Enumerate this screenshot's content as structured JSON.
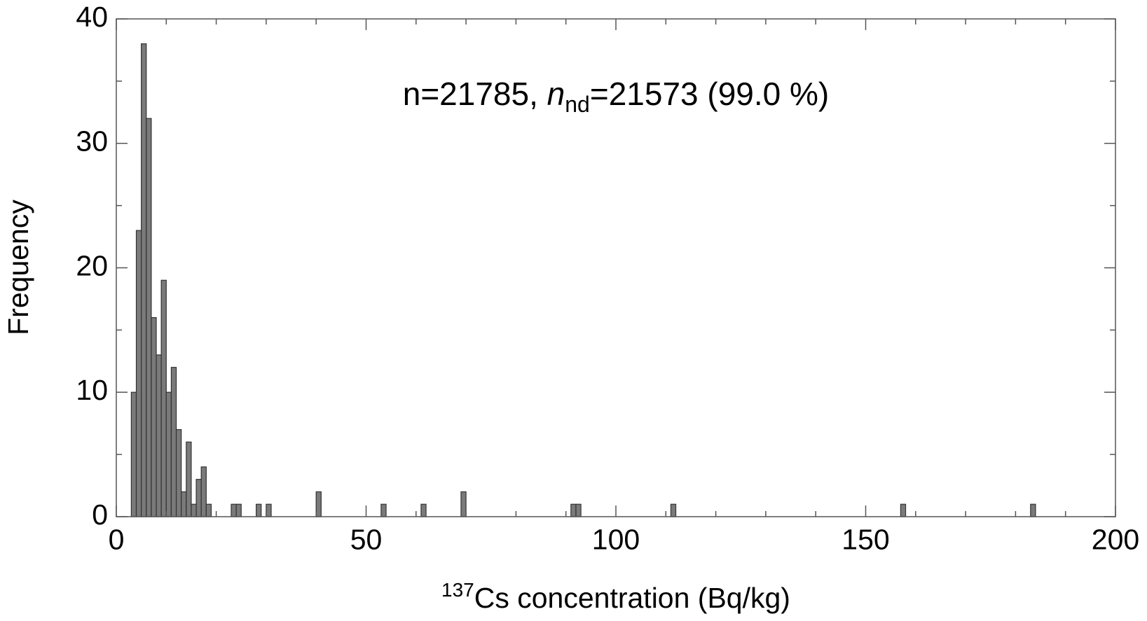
{
  "chart_data": {
    "type": "histogram",
    "annotation": {
      "parts": [
        "n=21785, ",
        "n",
        "nd",
        "=21573 (99.0 %)"
      ]
    },
    "x_label": {
      "sup": "137",
      "text": "Cs concentration (Bq/kg)"
    },
    "y_label": "Frequency",
    "bins": [
      3,
      4,
      5,
      6,
      7,
      8,
      9,
      10,
      11,
      12,
      13,
      14,
      15,
      16,
      17,
      18,
      19,
      20,
      21,
      22,
      23,
      24,
      25,
      26,
      27,
      28,
      29,
      30,
      31,
      32,
      33,
      34,
      35,
      36,
      37,
      38,
      39,
      40,
      41,
      42,
      43,
      44,
      45,
      46,
      47,
      48,
      49,
      50,
      51,
      52,
      53,
      54,
      55,
      56,
      57,
      58,
      59,
      60,
      61,
      62,
      63,
      64,
      65,
      66,
      67,
      68,
      69,
      70,
      71,
      72,
      73,
      74,
      75,
      76,
      77,
      78,
      79,
      80,
      81,
      82,
      83,
      84,
      85,
      86,
      87,
      88,
      89,
      90,
      91,
      92,
      93,
      94,
      95,
      96,
      97,
      98,
      99,
      100,
      101,
      102,
      103,
      104,
      105,
      106,
      107,
      108,
      109,
      110,
      111,
      112,
      113,
      114,
      115,
      116,
      117,
      118,
      119,
      120,
      121,
      122,
      123,
      124,
      125,
      126,
      127,
      128,
      129,
      130,
      131,
      132,
      133,
      134,
      135,
      136,
      137,
      138,
      139,
      140,
      141,
      142,
      143,
      144,
      145,
      146,
      147,
      148,
      149,
      150,
      151,
      152,
      153,
      154,
      155,
      156,
      157,
      158,
      159,
      160,
      161,
      162,
      163,
      164,
      165,
      166,
      167,
      168,
      169,
      170,
      171,
      172,
      173,
      174,
      175,
      176,
      177,
      178,
      179,
      180,
      181,
      182,
      183,
      184
    ],
    "values": [
      10,
      23,
      38,
      32,
      16,
      13,
      19,
      10,
      12,
      7,
      2,
      6,
      1,
      3,
      4,
      1,
      0,
      0,
      0,
      0,
      1,
      1,
      0,
      0,
      0,
      1,
      0,
      1,
      0,
      0,
      0,
      0,
      0,
      0,
      0,
      0,
      0,
      2,
      0,
      0,
      0,
      0,
      0,
      0,
      0,
      0,
      0,
      0,
      0,
      0,
      1,
      0,
      0,
      0,
      0,
      0,
      0,
      0,
      1,
      0,
      0,
      0,
      0,
      0,
      0,
      0,
      2,
      0,
      0,
      0,
      0,
      0,
      0,
      0,
      0,
      0,
      0,
      0,
      0,
      0,
      0,
      0,
      0,
      0,
      0,
      0,
      0,
      0,
      1,
      1,
      0,
      0,
      0,
      0,
      0,
      0,
      0,
      0,
      0,
      0,
      0,
      0,
      0,
      0,
      0,
      0,
      0,
      0,
      1,
      0,
      0,
      0,
      0,
      0,
      0,
      0,
      0,
      0,
      0,
      0,
      0,
      0,
      0,
      0,
      0,
      0,
      0,
      0,
      0,
      0,
      0,
      0,
      0,
      0,
      0,
      0,
      0,
      0,
      0,
      0,
      0,
      0,
      0,
      0,
      0,
      0,
      0,
      0,
      0,
      0,
      0,
      0,
      0,
      0,
      1,
      0,
      0,
      0,
      0,
      0,
      0,
      0,
      0,
      0,
      0,
      0,
      0,
      0,
      0,
      0,
      0,
      0,
      0,
      0,
      0,
      0,
      0,
      0,
      0,
      0,
      1
    ],
    "color": "#7a7a7a",
    "xlim": [
      0,
      200
    ],
    "xticks": [
      0,
      50,
      100,
      150,
      200
    ],
    "xminorticks": [
      10,
      20,
      30,
      40,
      60,
      70,
      80,
      90,
      110,
      120,
      130,
      140,
      160,
      170,
      180,
      190
    ],
    "ylim": [
      0,
      40
    ],
    "yticks": [
      0,
      10,
      20,
      30,
      40
    ],
    "yminorticks": [
      5,
      15,
      25,
      35
    ]
  }
}
